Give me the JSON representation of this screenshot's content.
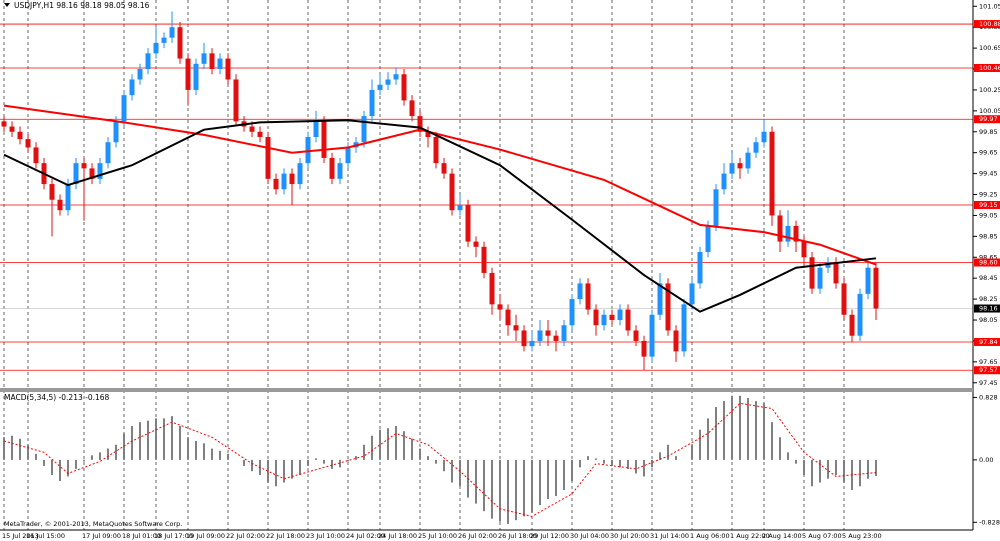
{
  "chart_data": {
    "type": "candlestick",
    "title": "USDJPY,H1  98.16 98.18 98.05 98.16",
    "copyright": "MetaTrader, © 2001-2013, MetaQuotes Software Corp.",
    "up_color": "#1e90ff",
    "down_color": "#e01010",
    "ylim": [
      97.4,
      101.11
    ],
    "yticks": [
      101.05,
      100.85,
      100.65,
      100.45,
      100.25,
      100.05,
      99.85,
      99.65,
      99.45,
      99.25,
      99.05,
      98.85,
      98.65,
      98.45,
      98.25,
      98.05,
      97.85,
      97.65,
      97.45
    ],
    "levels_color": "#ff0000",
    "levels": [
      100.88,
      100.46,
      99.97,
      99.15,
      {
        "value": 98.6,
        "label": "98.60"
      },
      97.84,
      97.57
    ],
    "last_price": 98.16,
    "categories": [
      "15 Jul 2013",
      null,
      null,
      "16 Jul 15:00",
      null,
      null,
      null,
      null,
      null,
      null,
      "17 Jul 09:00",
      null,
      null,
      null,
      null,
      "18 Jul 01:00",
      null,
      null,
      null,
      "18 Jul 17:00",
      null,
      null,
      null,
      "19 Jul 09:00",
      null,
      null,
      null,
      null,
      "22 Jul 02:00",
      null,
      null,
      null,
      null,
      "22 Jul 18:00",
      null,
      null,
      null,
      null,
      "23 Jul 10:00",
      null,
      null,
      null,
      null,
      "24 Jul 02:00",
      null,
      null,
      null,
      "24 Jul 18:00",
      null,
      null,
      null,
      null,
      "25 Jul 10:00",
      null,
      null,
      null,
      null,
      "26 Jul 02:00",
      null,
      null,
      null,
      null,
      "26 Jul 18:00",
      null,
      null,
      null,
      "29 Jul 12:00",
      null,
      null,
      null,
      null,
      "30 Jul 04:00",
      null,
      null,
      null,
      null,
      "30 Jul 20:00",
      null,
      null,
      null,
      null,
      "31 Jul 14:00",
      null,
      null,
      null,
      null,
      "1 Aug 06:00",
      null,
      null,
      null,
      null,
      "1 Aug 22:00",
      null,
      null,
      null,
      "2 Aug 14:00",
      null,
      null,
      null,
      null,
      "5 Aug 07:00",
      null,
      null,
      null,
      null,
      "5 Aug 23:00",
      null,
      null,
      null,
      null
    ],
    "open": [
      99.95,
      99.9,
      99.85,
      99.78,
      99.7,
      99.55,
      99.35,
      99.2,
      99.1,
      99.35,
      99.55,
      99.5,
      99.4,
      99.55,
      99.75,
      99.95,
      100.2,
      100.35,
      100.45,
      100.6,
      100.7,
      100.75,
      100.85,
      100.55,
      100.25,
      100.5,
      100.6,
      100.45,
      100.55,
      100.35,
      99.95,
      99.9,
      99.85,
      99.8,
      99.4,
      99.3,
      99.45,
      99.35,
      99.55,
      99.8,
      99.95,
      99.6,
      99.4,
      99.55,
      99.7,
      99.75,
      100.0,
      100.25,
      100.3,
      100.35,
      100.4,
      100.15,
      100.0,
      99.85,
      99.8,
      99.55,
      99.45,
      99.1,
      99.15,
      98.8,
      98.75,
      98.5,
      98.2,
      98.15,
      98.0,
      97.95,
      97.8,
      97.85,
      97.95,
      97.9,
      97.85,
      98.0,
      98.25,
      98.4,
      98.15,
      98.0,
      98.1,
      98.05,
      98.15,
      97.95,
      97.85,
      97.7,
      98.1,
      98.4,
      97.95,
      97.75,
      98.2,
      98.4,
      98.7,
      98.95,
      99.3,
      99.45,
      99.55,
      99.5,
      99.65,
      99.75,
      99.85,
      99.05,
      98.8,
      98.95,
      98.8,
      98.65,
      98.35,
      98.55,
      98.6,
      98.4,
      98.1,
      97.9,
      98.3,
      98.55
    ],
    "high": [
      100.0,
      99.95,
      99.9,
      99.83,
      99.75,
      99.6,
      99.4,
      99.25,
      99.4,
      99.6,
      99.6,
      99.55,
      99.6,
      99.8,
      100.0,
      100.25,
      100.4,
      100.5,
      100.65,
      100.85,
      100.8,
      101.0,
      100.9,
      100.6,
      100.55,
      100.7,
      100.65,
      100.6,
      100.6,
      100.4,
      100.0,
      99.95,
      99.9,
      99.85,
      99.45,
      99.5,
      99.5,
      99.6,
      99.85,
      100.05,
      100.0,
      99.65,
      99.6,
      99.75,
      99.8,
      100.05,
      100.35,
      100.4,
      100.42,
      100.46,
      100.45,
      100.2,
      100.05,
      99.9,
      99.85,
      99.6,
      99.5,
      99.25,
      99.2,
      98.85,
      98.8,
      98.55,
      98.3,
      98.2,
      98.1,
      98.0,
      97.95,
      98.05,
      98.05,
      97.95,
      98.05,
      98.3,
      98.45,
      98.45,
      98.2,
      98.15,
      98.15,
      98.2,
      98.2,
      98.0,
      97.9,
      98.15,
      98.5,
      98.45,
      98.0,
      98.25,
      98.45,
      98.75,
      99.0,
      99.35,
      99.55,
      99.65,
      99.6,
      99.7,
      99.8,
      99.97,
      99.9,
      99.1,
      99.1,
      99.0,
      98.85,
      98.7,
      98.6,
      98.65,
      98.65,
      98.45,
      98.15,
      98.35,
      98.6,
      98.6
    ],
    "low": [
      99.85,
      99.8,
      99.73,
      99.65,
      99.5,
      99.3,
      98.85,
      99.05,
      99.05,
      99.3,
      99.0,
      99.35,
      99.35,
      99.5,
      99.7,
      99.9,
      100.15,
      100.3,
      100.4,
      100.55,
      100.65,
      100.7,
      100.5,
      100.1,
      100.2,
      100.45,
      100.4,
      100.4,
      100.3,
      99.9,
      99.85,
      99.8,
      99.75,
      99.35,
      99.25,
      99.25,
      99.15,
      99.3,
      99.5,
      99.75,
      99.55,
      99.35,
      99.35,
      99.5,
      99.65,
      99.7,
      99.95,
      100.2,
      100.25,
      100.3,
      100.1,
      99.95,
      99.8,
      99.7,
      99.5,
      99.4,
      99.05,
      99.05,
      98.75,
      98.65,
      98.45,
      98.1,
      98.05,
      97.9,
      97.85,
      97.75,
      97.75,
      97.8,
      97.8,
      97.75,
      97.8,
      97.95,
      98.2,
      98.1,
      97.9,
      97.95,
      98.0,
      98.0,
      97.9,
      97.8,
      97.57,
      97.65,
      98.05,
      97.9,
      97.65,
      97.7,
      98.15,
      98.35,
      98.65,
      98.9,
      99.25,
      99.4,
      99.4,
      99.45,
      99.6,
      99.7,
      98.95,
      98.7,
      98.75,
      98.7,
      98.55,
      98.3,
      98.3,
      98.5,
      98.35,
      98.05,
      97.84,
      97.85,
      98.25,
      98.05
    ],
    "close": [
      99.9,
      99.85,
      99.78,
      99.7,
      99.55,
      99.35,
      99.2,
      99.1,
      99.35,
      99.55,
      99.5,
      99.4,
      99.55,
      99.75,
      99.95,
      100.2,
      100.35,
      100.45,
      100.6,
      100.7,
      100.75,
      100.85,
      100.55,
      100.25,
      100.5,
      100.6,
      100.45,
      100.55,
      100.35,
      99.95,
      99.9,
      99.85,
      99.8,
      99.4,
      99.3,
      99.45,
      99.35,
      99.55,
      99.8,
      99.95,
      99.6,
      99.4,
      99.55,
      99.7,
      99.75,
      100.0,
      100.25,
      100.3,
      100.35,
      100.4,
      100.15,
      100.0,
      99.85,
      99.8,
      99.55,
      99.45,
      99.1,
      99.15,
      98.8,
      98.75,
      98.5,
      98.2,
      98.15,
      98.0,
      97.95,
      97.8,
      97.85,
      97.95,
      97.9,
      97.85,
      98.0,
      98.25,
      98.4,
      98.15,
      98.0,
      98.1,
      98.05,
      98.15,
      97.95,
      97.85,
      97.7,
      98.1,
      98.4,
      97.95,
      97.75,
      98.2,
      98.4,
      98.7,
      98.95,
      99.3,
      99.45,
      99.55,
      99.5,
      99.65,
      99.75,
      99.85,
      99.05,
      98.8,
      98.95,
      98.8,
      98.65,
      98.35,
      98.55,
      98.6,
      98.4,
      98.1,
      97.9,
      98.3,
      98.55,
      98.16
    ],
    "moving_averages": [
      {
        "color": "#ff0000",
        "x": [
          0,
          15,
          25,
          36,
          43,
          52,
          62,
          75,
          87,
          95,
          102,
          109
        ],
        "values": [
          100.1,
          99.94,
          99.82,
          99.65,
          99.7,
          99.87,
          99.68,
          99.39,
          98.96,
          98.89,
          98.77,
          98.58
        ]
      },
      {
        "color": "#000000",
        "x": [
          0,
          8,
          16,
          25,
          32,
          43,
          52,
          62,
          71,
          80,
          87,
          92,
          99,
          109
        ],
        "values": [
          99.63,
          99.34,
          99.53,
          99.87,
          99.94,
          99.96,
          99.89,
          99.53,
          99.01,
          98.48,
          98.13,
          98.29,
          98.55,
          98.64
        ]
      }
    ],
    "macd": {
      "title": "MACD(5,34,5) -0.213 -0.168",
      "ylim": [
        -0.93,
        0.9
      ],
      "yticks": [
        0.828,
        {
          "value": 0,
          "label": "0.00"
        },
        -0.828
      ],
      "histogram_color": "#808080",
      "histogram": [
        0.3,
        0.32,
        0.28,
        0.2,
        0.08,
        -0.08,
        -0.2,
        -0.28,
        -0.22,
        -0.12,
        -0.02,
        0.06,
        0.1,
        0.15,
        0.2,
        0.35,
        0.45,
        0.5,
        0.52,
        0.55,
        0.55,
        0.58,
        0.45,
        0.3,
        0.25,
        0.22,
        0.15,
        0.12,
        0.08,
        0.0,
        -0.08,
        -0.15,
        -0.2,
        -0.3,
        -0.35,
        -0.3,
        -0.25,
        -0.2,
        -0.08,
        0.02,
        -0.05,
        -0.12,
        -0.1,
        -0.02,
        0.05,
        0.2,
        0.32,
        0.4,
        0.42,
        0.45,
        0.38,
        0.28,
        0.15,
        0.05,
        -0.05,
        -0.15,
        -0.3,
        -0.35,
        -0.5,
        -0.58,
        -0.68,
        -0.78,
        -0.82,
        -0.85,
        -0.8,
        -0.75,
        -0.7,
        -0.6,
        -0.52,
        -0.48,
        -0.4,
        -0.28,
        -0.1,
        0.05,
        0.02,
        -0.05,
        -0.08,
        -0.1,
        -0.12,
        -0.18,
        -0.22,
        -0.1,
        0.1,
        0.2,
        0.05,
        0.0,
        0.2,
        0.4,
        0.55,
        0.7,
        0.78,
        0.85,
        0.85,
        0.82,
        0.78,
        0.75,
        0.5,
        0.3,
        0.1,
        -0.05,
        -0.2,
        -0.35,
        -0.3,
        -0.25,
        -0.2,
        -0.3,
        -0.4,
        -0.35,
        -0.25,
        -0.213
      ],
      "signal": {
        "color": "#ff0000",
        "x": [
          0,
          5,
          8,
          12,
          16,
          21,
          26,
          31,
          35,
          40,
          45,
          49,
          53,
          57,
          62,
          66,
          71,
          74,
          79,
          83,
          88,
          92,
          96,
          100,
          104,
          109
        ],
        "values": [
          0.25,
          0.1,
          -0.18,
          -0.02,
          0.25,
          0.5,
          0.3,
          -0.05,
          -0.25,
          -0.1,
          0.05,
          0.35,
          0.2,
          -0.15,
          -0.65,
          -0.75,
          -0.45,
          -0.05,
          -0.12,
          0.05,
          0.35,
          0.75,
          0.68,
          0.1,
          -0.22,
          -0.168
        ]
      }
    }
  }
}
